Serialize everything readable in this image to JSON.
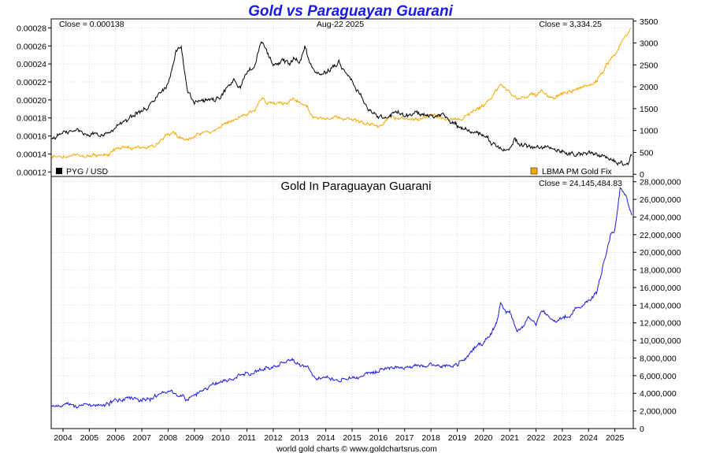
{
  "chart_data": [
    {
      "type": "line",
      "title": "Gold vs Paraguayan Guarani",
      "date_label": "Aug-22  2025",
      "left_axis": {
        "ticks": [
          "0.00012",
          "0.00014",
          "0.00016",
          "0.00018",
          "0.00020",
          "0.00022",
          "0.00024",
          "0.00026",
          "0.00028"
        ],
        "ylim": [
          0.000115,
          0.00029
        ]
      },
      "right_axis": {
        "ticks": [
          "0",
          "500",
          "1000",
          "1500",
          "2000",
          "2500",
          "3000",
          "3500"
        ],
        "ylim": [
          -50,
          3550
        ]
      },
      "left_close": "Close = 0.000138",
      "right_close": "Close = 3,334.25",
      "legend": [
        {
          "label": "PYG / USD",
          "color": "#000000",
          "position": "bottom-left"
        },
        {
          "label": "LBMA PM Gold Fix",
          "color": "#f5a800",
          "position": "bottom-right"
        }
      ],
      "series": [
        {
          "name": "PYG / USD",
          "axis": "left",
          "color": "#000000",
          "x": [
            2003.55,
            2004.0,
            2004.5,
            2005.0,
            2005.5,
            2006.0,
            2006.5,
            2007.0,
            2007.5,
            2008.0,
            2008.3,
            2008.5,
            2008.75,
            2009.0,
            2009.5,
            2010.0,
            2010.5,
            2010.75,
            2011.0,
            2011.3,
            2011.55,
            2011.8,
            2012.0,
            2012.3,
            2012.6,
            2012.8,
            2013.0,
            2013.2,
            2013.5,
            2013.75,
            2014.0,
            2014.25,
            2014.5,
            2014.75,
            2015.0,
            2015.3,
            2015.6,
            2016.0,
            2016.5,
            2016.75,
            2017.0,
            2017.5,
            2018.0,
            2018.5,
            2019.0,
            2019.5,
            2020.0,
            2020.25,
            2020.5,
            2020.75,
            2021.0,
            2021.2,
            2021.5,
            2022.0,
            2022.5,
            2023.0,
            2023.5,
            2024.0,
            2024.5,
            2025.0,
            2025.3,
            2025.5,
            2025.64
          ],
          "y": [
            0.000157,
            0.000164,
            0.000167,
            0.00016,
            0.000163,
            0.000168,
            0.00018,
            0.00019,
            0.000197,
            0.000218,
            0.000255,
            0.000257,
            0.00021,
            0.000198,
            0.000201,
            0.000202,
            0.000225,
            0.000212,
            0.000232,
            0.000238,
            0.000265,
            0.00025,
            0.000237,
            0.000244,
            0.00024,
            0.000248,
            0.00024,
            0.000258,
            0.000232,
            0.000228,
            0.00023,
            0.000237,
            0.000244,
            0.00023,
            0.00022,
            0.000204,
            0.00019,
            0.00018,
            0.000182,
            0.000186,
            0.000181,
            0.000183,
            0.000182,
            0.000182,
            0.000172,
            0.000165,
            0.00016,
            0.000155,
            0.000149,
            0.000145,
            0.000146,
            0.000158,
            0.000148,
            0.000148,
            0.000146,
            0.000144,
            0.000141,
            0.00014,
            0.000137,
            0.000132,
            0.000128,
            0.000129,
            0.000138
          ]
        },
        {
          "name": "LBMA PM Gold Fix",
          "axis": "right",
          "color": "#f5a800",
          "x": [
            2003.55,
            2004.0,
            2004.5,
            2005.0,
            2005.5,
            2006.0,
            2006.4,
            2006.6,
            2007.0,
            2007.5,
            2008.0,
            2008.2,
            2008.75,
            2009.0,
            2009.5,
            2010.0,
            2010.5,
            2011.0,
            2011.3,
            2011.6,
            2011.75,
            2012.0,
            2012.5,
            2012.75,
            2013.0,
            2013.3,
            2013.5,
            2013.75,
            2014.0,
            2014.5,
            2015.0,
            2015.5,
            2016.0,
            2016.5,
            2017.0,
            2017.5,
            2018.0,
            2018.5,
            2019.0,
            2019.5,
            2020.0,
            2020.5,
            2020.65,
            2021.0,
            2021.3,
            2021.7,
            2022.0,
            2022.2,
            2022.7,
            2023.0,
            2023.5,
            2024.0,
            2024.3,
            2024.6,
            2024.85,
            2025.0,
            2025.3,
            2025.6
          ],
          "y": [
            380,
            400,
            410,
            430,
            440,
            540,
            650,
            600,
            640,
            680,
            900,
            950,
            780,
            900,
            950,
            1100,
            1250,
            1400,
            1500,
            1750,
            1650,
            1650,
            1620,
            1750,
            1650,
            1550,
            1300,
            1280,
            1250,
            1300,
            1250,
            1150,
            1100,
            1330,
            1250,
            1270,
            1320,
            1250,
            1250,
            1400,
            1550,
            1900,
            2050,
            1850,
            1750,
            1800,
            1800,
            1900,
            1700,
            1850,
            1950,
            2050,
            2150,
            2400,
            2650,
            2700,
            3100,
            3330
          ]
        }
      ]
    },
    {
      "type": "line",
      "title": "Gold In Paraguayan Guarani",
      "right_close": "Close = 24,145,484.83",
      "right_axis": {
        "ticks": [
          "0",
          "2,000,000",
          "4,000,000",
          "6,000,000",
          "8,000,000",
          "10,000,000",
          "12,000,000",
          "14,000,000",
          "16,000,000",
          "18,000,000",
          "20,000,000",
          "22,000,000",
          "24,000,000",
          "26,000,000",
          "28,000,000"
        ],
        "ylim": [
          0,
          28600000
        ]
      },
      "x_axis": {
        "ticks": [
          "2004",
          "2005",
          "2006",
          "2007",
          "2008",
          "2009",
          "2010",
          "2011",
          "2012",
          "2013",
          "2014",
          "2015",
          "2016",
          "2017",
          "2018",
          "2019",
          "2020",
          "2021",
          "2022",
          "2023",
          "2024",
          "2025"
        ],
        "xlim": [
          2003.55,
          2025.7
        ]
      },
      "series": [
        {
          "name": "Gold In Paraguayan Guarani",
          "color": "#1a1ae6",
          "x": [
            2003.55,
            2004.0,
            2004.5,
            2005.0,
            2005.5,
            2006.0,
            2006.5,
            2007.0,
            2007.5,
            2008.0,
            2008.2,
            2008.75,
            2009.0,
            2009.5,
            2010.0,
            2010.5,
            2011.0,
            2011.3,
            2011.6,
            2012.0,
            2012.5,
            2012.75,
            2013.0,
            2013.3,
            2013.5,
            2014.0,
            2014.5,
            2015.0,
            2015.5,
            2016.0,
            2016.5,
            2017.0,
            2017.5,
            2018.0,
            2018.5,
            2019.0,
            2019.5,
            2020.0,
            2020.3,
            2020.5,
            2020.65,
            2021.0,
            2021.3,
            2021.7,
            2022.0,
            2022.2,
            2022.7,
            2023.0,
            2023.5,
            2024.0,
            2024.3,
            2024.6,
            2024.85,
            2025.0,
            2025.2,
            2025.4,
            2025.64
          ],
          "y": [
            2400000,
            2500000,
            2500000,
            2700000,
            2700000,
            3200000,
            3600000,
            3300000,
            3600000,
            4200000,
            4000000,
            3300000,
            4000000,
            4700000,
            5300000,
            5600000,
            6200000,
            6300000,
            6600000,
            7000000,
            7600000,
            7700000,
            7200000,
            7200000,
            5800000,
            5800000,
            5500000,
            5700000,
            6200000,
            6500000,
            7000000,
            6700000,
            7000000,
            7200000,
            7000000,
            7300000,
            8500000,
            9800000,
            11000000,
            12000000,
            14000000,
            13000000,
            11200000,
            12500000,
            12000000,
            13500000,
            12000000,
            12500000,
            13500000,
            14500000,
            15500000,
            19000000,
            22000000,
            22500000,
            27200000,
            26500000,
            24200000
          ]
        }
      ]
    }
  ],
  "credit": "world gold charts © www.goldchartsrus.com"
}
